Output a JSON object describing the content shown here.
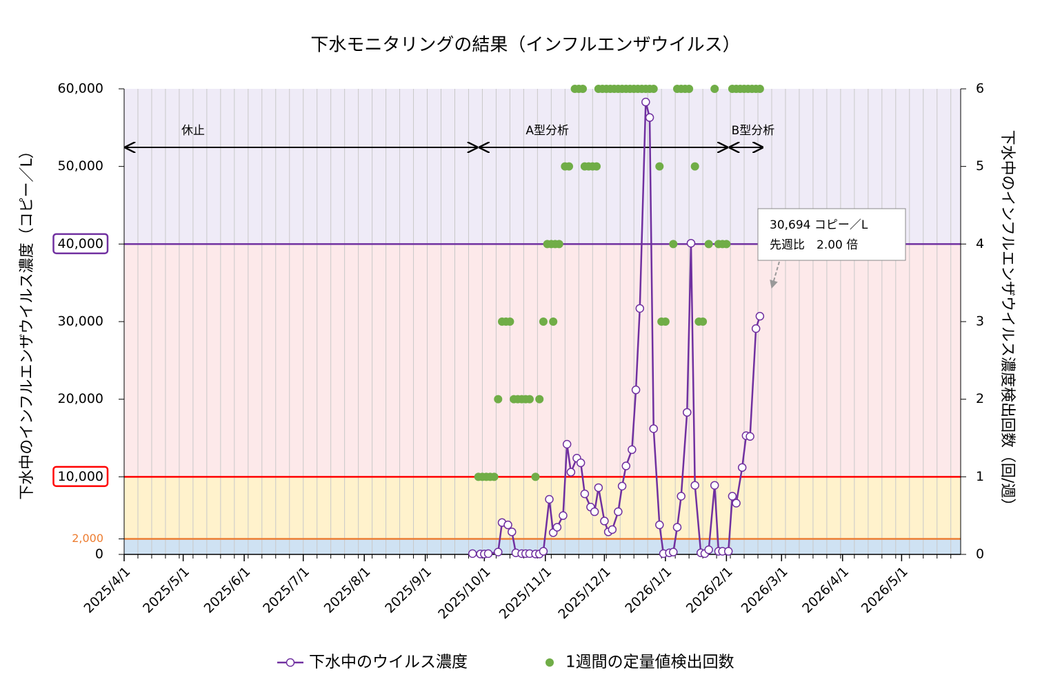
{
  "chart_data": {
    "type": "line",
    "title": "下水モニタリングの結果（インフルエンザウイルス）",
    "y_label": "下水中のインフルエンザウイルス濃度（コピー／L）",
    "y2_label": "下水中のインフルエンザウイルス濃度検出回数（回/週）",
    "xlim": [
      "2025/4/1",
      "2026/5/31"
    ],
    "xticks": [
      "2025/4/1",
      "2025/5/1",
      "2025/6/1",
      "2025/7/1",
      "2025/8/1",
      "2025/9/1",
      "2025/10/1",
      "2025/11/1",
      "2025/12/1",
      "2026/1/1",
      "2026/2/1",
      "2026/3/1",
      "2026/4/1",
      "2026/5/1"
    ],
    "ylim": [
      0,
      60000
    ],
    "yticks": [
      0,
      {
        "value": 2000,
        "label": "2,000"
      },
      {
        "value": 10000,
        "label": "10,000"
      },
      {
        "value": 20000,
        "label": "20,000"
      },
      {
        "value": 30000,
        "label": "30,000"
      },
      {
        "value": 40000,
        "label": "40,000"
      },
      {
        "value": 50000,
        "label": "50,000"
      },
      {
        "value": 60000,
        "label": "60,000"
      }
    ],
    "y2lim": [
      0,
      6
    ],
    "y2ticks": [
      0,
      1,
      2,
      3,
      4,
      5,
      6
    ],
    "bands": [
      {
        "from": 0,
        "to": 2000,
        "color": "#cfe2f3"
      },
      {
        "from": 2000,
        "to": 10000,
        "color": "#fff2cc"
      },
      {
        "from": 10000,
        "to": 40000,
        "color": "#fde9ea"
      },
      {
        "from": 40000,
        "to": 60000,
        "color": "#efebf7"
      }
    ],
    "thresholds": [
      {
        "value": 2000,
        "color": "#ed7d31",
        "boxed": false
      },
      {
        "value": 10000,
        "color": "#ff0000",
        "boxed": true
      },
      {
        "value": 40000,
        "color": "#7030a0",
        "boxed": true
      }
    ],
    "periods": [
      {
        "label": "休止",
        "start": "2025/4/1",
        "end": "2025/9/28"
      },
      {
        "label": "A型分析",
        "start": "2025/9/28",
        "end": "2026/2/2"
      },
      {
        "label": "B型分析",
        "start": "2026/2/2",
        "end": "2026/2/20"
      }
    ],
    "callout": {
      "lines": [
        "30,694 コピー／L",
        "先週比　2.00 倍"
      ]
    },
    "series": [
      {
        "name": "下水中のウイルス濃度",
        "color": "#7030a0",
        "type": "line",
        "x": [
          "2025/9/25",
          "2025/9/29",
          "2025/10/1",
          "2025/10/3",
          "2025/10/8",
          "2025/10/10",
          "2025/10/13",
          "2025/10/15",
          "2025/10/17",
          "2025/10/20",
          "2025/10/22",
          "2025/10/24",
          "2025/10/27",
          "2025/10/29",
          "2025/10/31",
          "2025/11/3",
          "2025/11/5",
          "2025/11/7",
          "2025/11/10",
          "2025/11/12",
          "2025/11/14",
          "2025/11/17",
          "2025/11/19",
          "2025/11/21",
          "2025/11/24",
          "2025/11/26",
          "2025/11/28",
          "2025/12/1",
          "2025/12/3",
          "2025/12/5",
          "2025/12/8",
          "2025/12/10",
          "2025/12/12",
          "2025/12/15",
          "2025/12/17",
          "2025/12/19",
          "2025/12/22",
          "2025/12/24",
          "2025/12/26",
          "2025/12/29",
          "2025/12/31",
          "2026/1/3",
          "2026/1/5",
          "2026/1/7",
          "2026/1/9",
          "2026/1/12",
          "2026/1/14",
          "2026/1/16",
          "2026/1/19",
          "2026/1/21",
          "2026/1/23",
          "2026/1/26",
          "2026/1/28",
          "2026/1/30",
          "2026/2/2",
          "2026/2/4",
          "2026/2/6",
          "2026/2/9",
          "2026/2/11",
          "2026/2/13",
          "2026/2/16",
          "2026/2/18"
        ],
        "values": [
          100,
          50,
          50,
          100,
          300,
          4100,
          3800,
          2900,
          200,
          100,
          100,
          100,
          50,
          50,
          400,
          7100,
          2800,
          3500,
          5000,
          14200,
          10600,
          12400,
          11800,
          7800,
          6100,
          5500,
          8600,
          4300,
          2900,
          3200,
          5500,
          8800,
          11400,
          13500,
          21200,
          31700,
          58300,
          56300,
          16200,
          3800,
          100,
          200,
          300,
          3500,
          7500,
          18300,
          40100,
          8900,
          200,
          100,
          600,
          8900,
          400,
          400,
          400,
          7500,
          6600,
          11200,
          15300,
          15200,
          29100,
          30694
        ]
      },
      {
        "name": "1週間の定量値検出回数",
        "color": "#70ad47",
        "type": "scatter",
        "axis": "y2",
        "x": [
          "2025/9/28",
          "2025/9/30",
          "2025/10/2",
          "2025/10/4",
          "2025/10/6",
          "2025/10/8",
          "2025/10/10",
          "2025/10/12",
          "2025/10/14",
          "2025/10/16",
          "2025/10/18",
          "2025/10/20",
          "2025/10/22",
          "2025/10/24",
          "2025/10/27",
          "2025/10/29",
          "2025/10/31",
          "2025/11/2",
          "2025/11/4",
          "2025/11/5",
          "2025/11/6",
          "2025/11/8",
          "2025/11/11",
          "2025/11/13",
          "2025/11/16",
          "2025/11/18",
          "2025/11/20",
          "2025/11/21",
          "2025/11/23",
          "2025/11/25",
          "2025/11/27",
          "2025/11/28",
          "2025/11/30",
          "2025/12/2",
          "2025/12/4",
          "2025/12/6",
          "2025/12/8",
          "2025/12/10",
          "2025/12/12",
          "2025/12/14",
          "2025/12/16",
          "2025/12/18",
          "2025/12/20",
          "2025/12/22",
          "2025/12/24",
          "2025/12/26",
          "2025/12/29",
          "2025/12/30",
          "2026/1/1",
          "2026/1/5",
          "2026/1/7",
          "2026/1/9",
          "2026/1/11",
          "2026/1/13",
          "2026/1/16",
          "2026/1/18",
          "2026/1/20",
          "2026/1/23",
          "2026/1/26",
          "2026/1/28",
          "2026/1/30",
          "2026/2/1",
          "2026/2/4",
          "2026/2/6",
          "2026/2/8",
          "2026/2/10",
          "2026/2/12",
          "2026/2/14",
          "2026/2/16",
          "2026/2/18"
        ],
        "values": [
          1,
          1,
          1,
          1,
          1,
          2,
          3,
          3,
          3,
          2,
          2,
          2,
          2,
          2,
          1,
          2,
          3,
          4,
          4,
          3,
          4,
          4,
          5,
          5,
          6,
          6,
          6,
          5,
          5,
          5,
          5,
          6,
          6,
          6,
          6,
          6,
          6,
          6,
          6,
          6,
          6,
          6,
          6,
          6,
          6,
          6,
          5,
          3,
          3,
          4,
          6,
          6,
          6,
          6,
          5,
          3,
          3,
          4,
          6,
          4,
          4,
          4,
          6,
          6,
          6,
          6,
          6,
          6,
          6,
          6
        ]
      }
    ]
  }
}
